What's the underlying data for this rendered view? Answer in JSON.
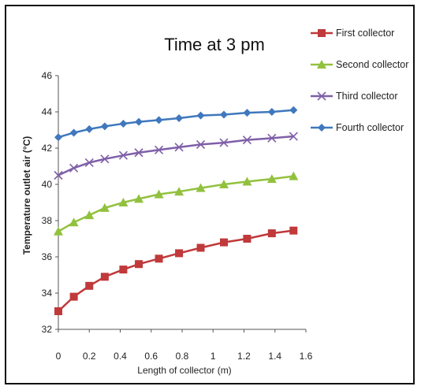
{
  "chart_data": {
    "type": "line",
    "title": "Time at 3 pm",
    "xlabel": "Length of collector (m)",
    "ylabel": "Temperature outlet air  (°C)",
    "xlim": [
      0,
      1.6
    ],
    "ylim": [
      32,
      46
    ],
    "x_ticks": [
      "0",
      "0.2",
      "0.4",
      "0.6",
      "0.8",
      "1",
      "1.2",
      "1.4",
      "1.6"
    ],
    "y_ticks": [
      "32",
      "34",
      "36",
      "38",
      "40",
      "42",
      "44",
      "46"
    ],
    "grid": false,
    "legend_position": "right",
    "x": [
      0,
      0.1,
      0.2,
      0.3,
      0.42,
      0.52,
      0.65,
      0.78,
      0.92,
      1.07,
      1.22,
      1.38,
      1.52
    ],
    "series": [
      {
        "name": "First collector",
        "color": "#c0393b",
        "marker": "square",
        "values": [
          33.0,
          33.8,
          34.4,
          34.9,
          35.3,
          35.6,
          35.9,
          36.2,
          36.5,
          36.8,
          37.0,
          37.3,
          37.45
        ]
      },
      {
        "name": "Second collector",
        "color": "#92c13e",
        "marker": "triangle",
        "values": [
          37.4,
          37.9,
          38.3,
          38.7,
          39.0,
          39.2,
          39.45,
          39.6,
          39.8,
          40.0,
          40.15,
          40.3,
          40.45
        ]
      },
      {
        "name": "Third collector",
        "color": "#7f5fa8",
        "marker": "x",
        "values": [
          40.5,
          40.9,
          41.2,
          41.4,
          41.6,
          41.75,
          41.9,
          42.05,
          42.2,
          42.3,
          42.45,
          42.55,
          42.65
        ]
      },
      {
        "name": "Fourth collector",
        "color": "#3f78bd",
        "marker": "diamond",
        "values": [
          42.6,
          42.85,
          43.05,
          43.2,
          43.35,
          43.45,
          43.55,
          43.65,
          43.8,
          43.85,
          43.95,
          44.0,
          44.1
        ]
      }
    ]
  }
}
